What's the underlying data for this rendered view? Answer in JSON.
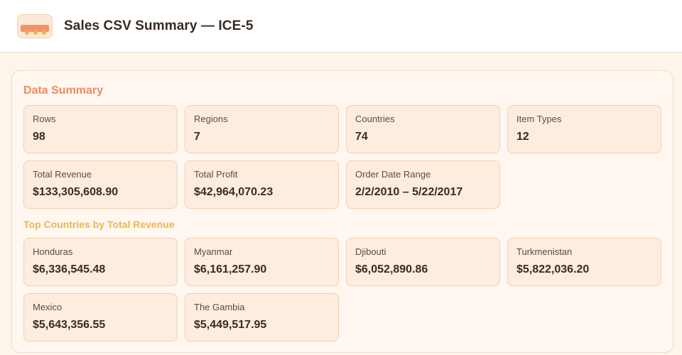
{
  "header": {
    "title": "Sales CSV Summary — ICE-5",
    "logo_icon": "truck-icon"
  },
  "summary": {
    "title": "Data Summary",
    "stats": [
      {
        "label": "Rows",
        "value": "98"
      },
      {
        "label": "Regions",
        "value": "7"
      },
      {
        "label": "Countries",
        "value": "74"
      },
      {
        "label": "Item Types",
        "value": "12"
      },
      {
        "label": "Total Revenue",
        "value": "$133,305,608.90"
      },
      {
        "label": "Total Profit",
        "value": "$42,964,070.23"
      },
      {
        "label": "Order Date Range",
        "value": "2/2/2010 – 5/22/2017"
      }
    ]
  },
  "top_countries": {
    "title": "Top Countries by Total Revenue",
    "items": [
      {
        "country": "Honduras",
        "revenue": "$6,336,545.48"
      },
      {
        "country": "Myanmar",
        "revenue": "$6,161,257.90"
      },
      {
        "country": "Djibouti",
        "revenue": "$6,052,890.86"
      },
      {
        "country": "Turkmenistan",
        "revenue": "$5,822,036.20"
      },
      {
        "country": "Mexico",
        "revenue": "$5,643,356.55"
      },
      {
        "country": "The Gambia",
        "revenue": "$5,449,517.95"
      }
    ]
  },
  "colors": {
    "accent_primary": "#f08a62",
    "accent_secondary": "#f0b54d",
    "card_bg": "#feeddf",
    "page_bg": "#fdf4ec"
  }
}
